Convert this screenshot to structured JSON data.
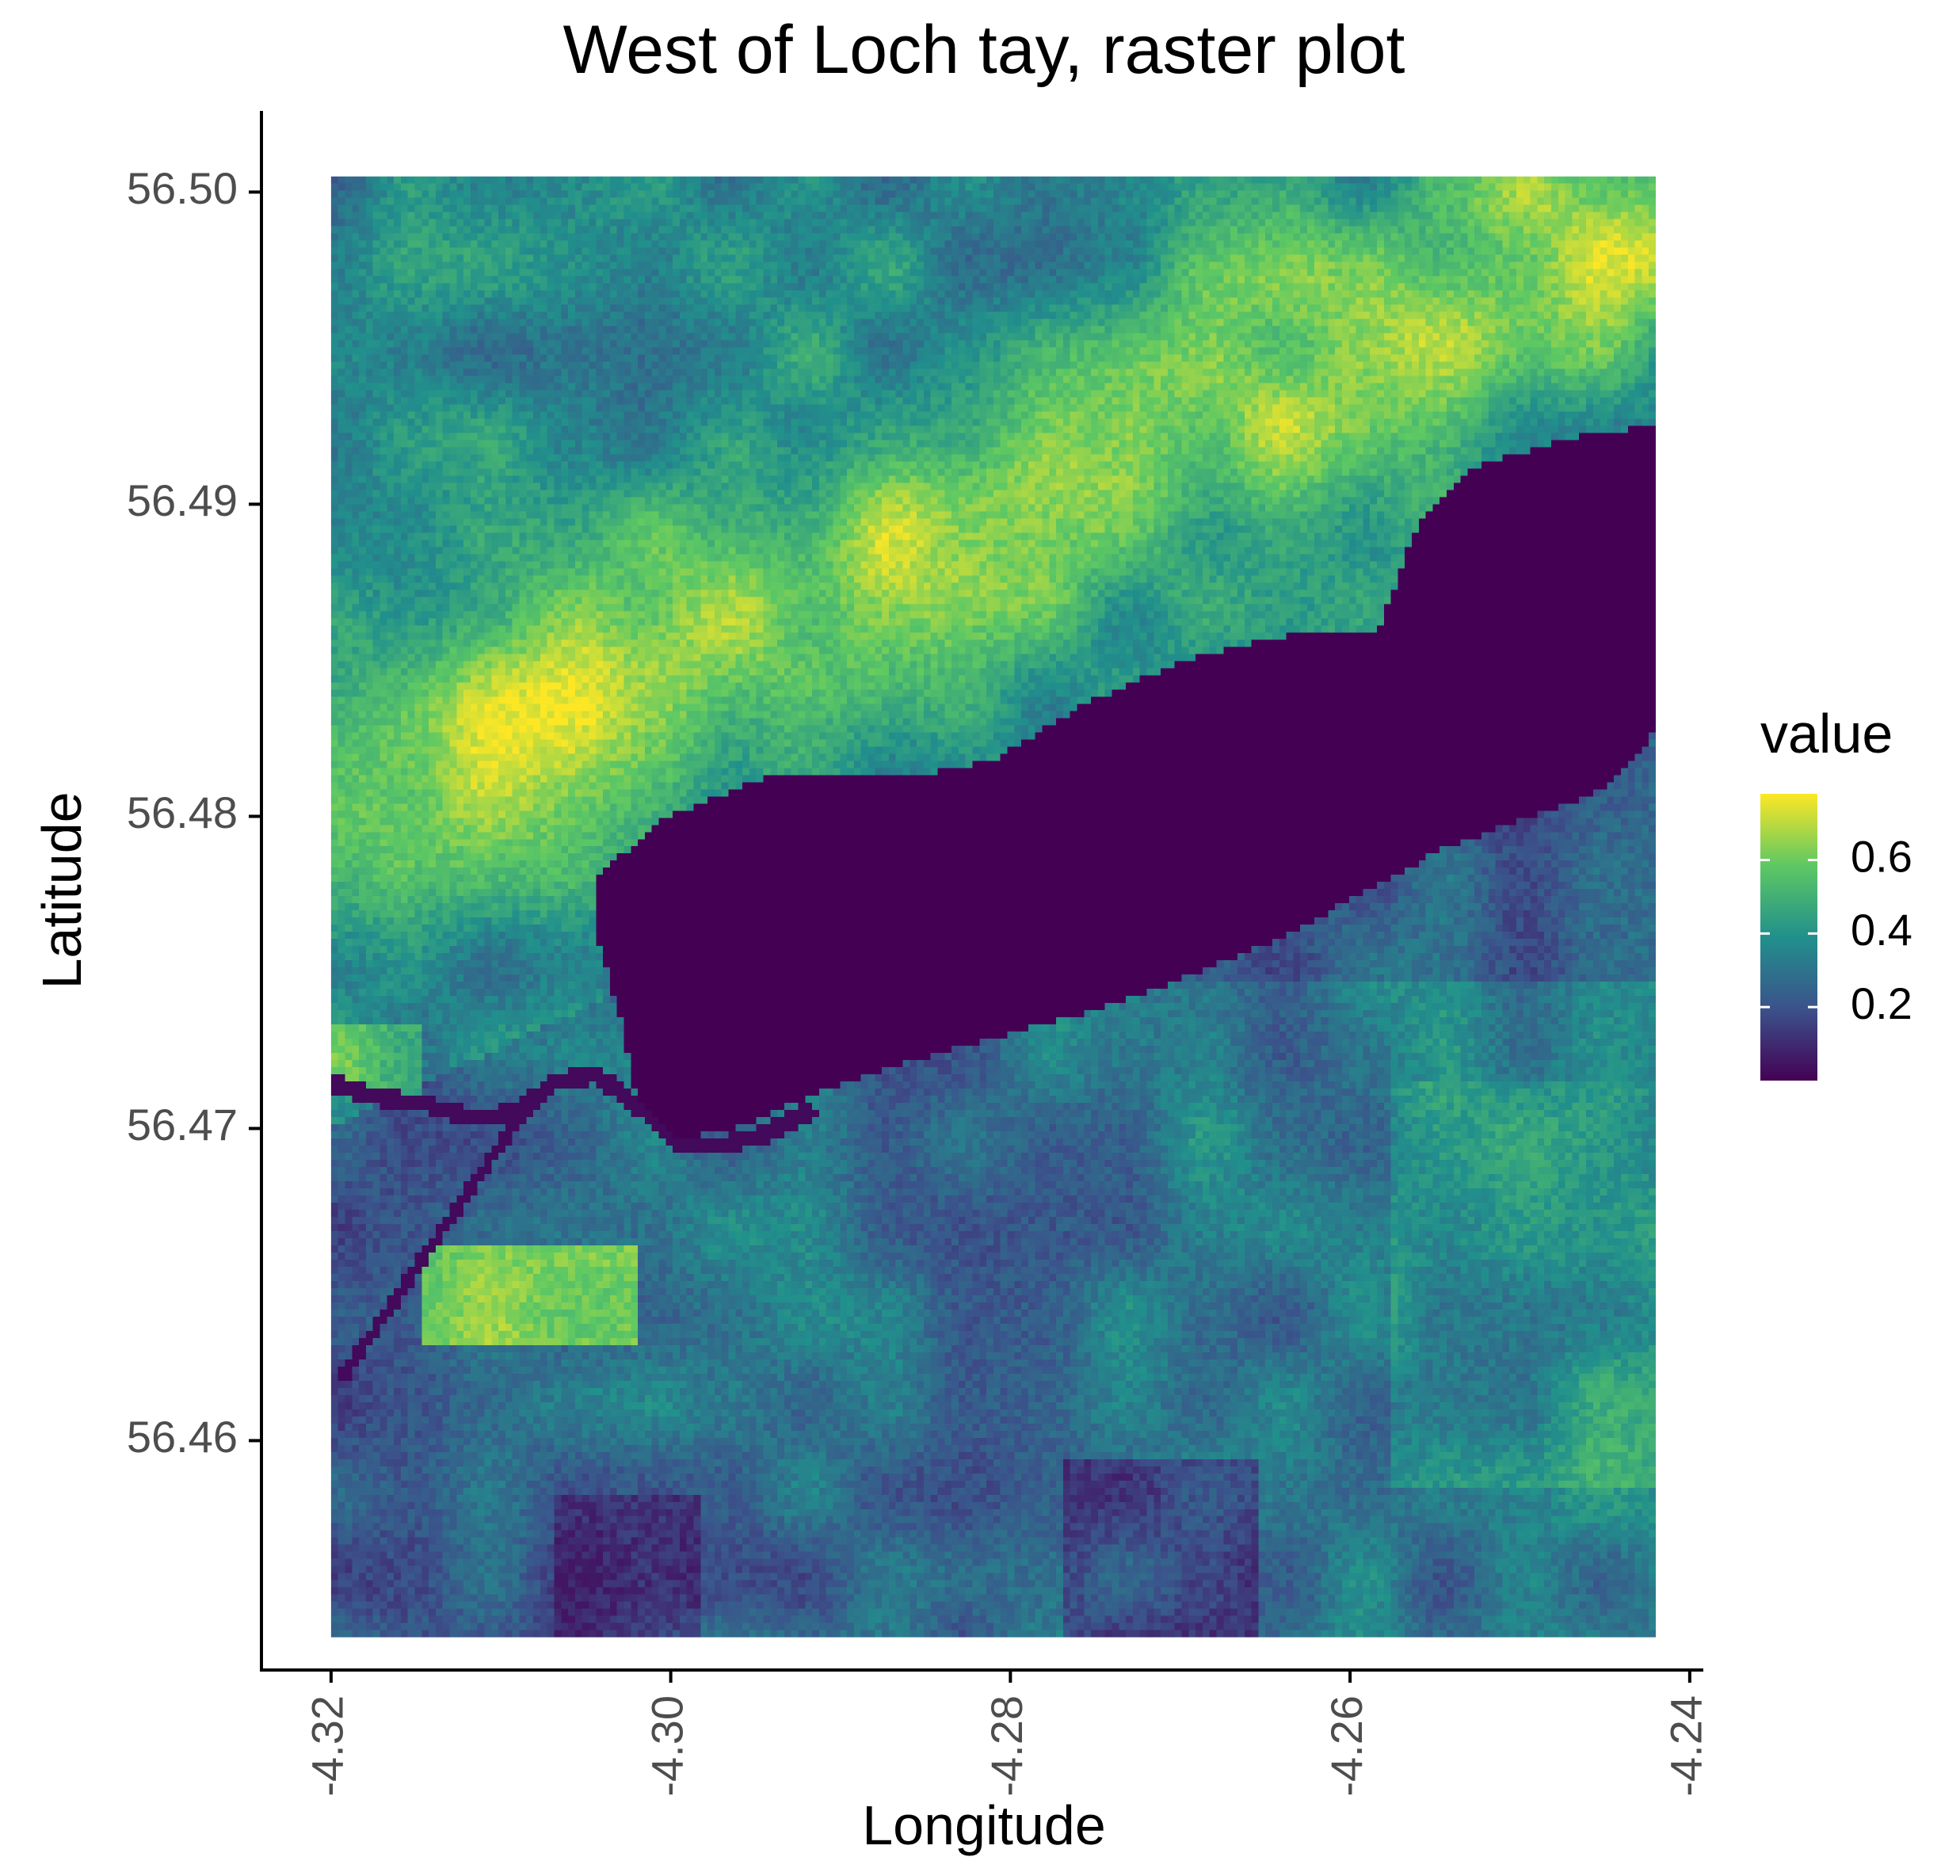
{
  "chart_data": {
    "type": "heatmap",
    "title": "West of Loch tay, raster plot",
    "xlabel": "Longitude",
    "ylabel": "Latitude",
    "xlim": [
      -4.3241,
      -4.2392
    ],
    "ylim": [
      56.4526,
      56.5026
    ],
    "x_ticks": [
      {
        "value": -4.32,
        "label": "-4.32"
      },
      {
        "value": -4.3,
        "label": "-4.30"
      },
      {
        "value": -4.28,
        "label": "-4.28"
      },
      {
        "value": -4.26,
        "label": "-4.26"
      },
      {
        "value": -4.24,
        "label": "-4.24"
      }
    ],
    "y_ticks": [
      {
        "value": 56.46,
        "label": "56.46"
      },
      {
        "value": 56.47,
        "label": "56.47"
      },
      {
        "value": 56.48,
        "label": "56.48"
      },
      {
        "value": 56.49,
        "label": "56.49"
      },
      {
        "value": 56.5,
        "label": "56.50"
      }
    ],
    "raster_extent": {
      "lon": [
        -4.32,
        -4.242
      ],
      "lat": [
        56.4537,
        56.5005
      ]
    },
    "legend": {
      "title": "value",
      "position": "right",
      "range": [
        0.0,
        0.78
      ],
      "ticks": [
        {
          "value": 0.2,
          "label": "0.2"
        },
        {
          "value": 0.4,
          "label": "0.4"
        },
        {
          "value": 0.6,
          "label": "0.6"
        }
      ]
    },
    "colormap": "viridis",
    "colors": [
      "#440154",
      "#3b528b",
      "#21908c",
      "#5dc863",
      "#fde725"
    ],
    "grid": false
  }
}
